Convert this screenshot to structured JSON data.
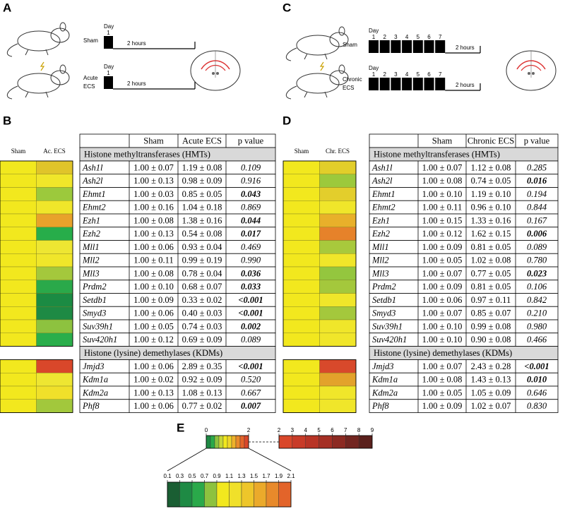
{
  "A": {
    "label": "A",
    "day_label": "Day",
    "duration": "2 hours",
    "conditions": [
      {
        "name": [
          "Sham"
        ],
        "days": [
          "1"
        ]
      },
      {
        "name": [
          "Acute",
          "ECS"
        ],
        "days": [
          "1"
        ]
      }
    ]
  },
  "C": {
    "label": "C",
    "day_label": "Day",
    "duration": "2 hours",
    "conditions": [
      {
        "name": [
          "Sham"
        ],
        "days": [
          "1",
          "2",
          "3",
          "4",
          "5",
          "6",
          "7"
        ]
      },
      {
        "name": [
          "Chronic",
          "ECS"
        ],
        "days": [
          "1",
          "2",
          "3",
          "4",
          "5",
          "6",
          "7"
        ]
      }
    ]
  },
  "B": {
    "label": "B",
    "heatmap_headers": [
      "Sham",
      "Ac. ECS"
    ],
    "columns": [
      "Sham",
      "Acute ECS",
      "p value"
    ],
    "groups": [
      {
        "title": "Histone methyltransferases (HMTs)",
        "rows": [
          {
            "gene": "Ash1l",
            "sham": "1.00 ± 0.07",
            "ecs": "1.19 ± 0.08",
            "p": "0.109",
            "significant": false,
            "heat": [
              "#f2e81e",
              "#e0c42a"
            ]
          },
          {
            "gene": "Ash2l",
            "sham": "1.00 ± 0.13",
            "ecs": "0.98 ± 0.09",
            "p": "0.916",
            "significant": false,
            "heat": [
              "#f2e81e",
              "#f0e62a"
            ]
          },
          {
            "gene": "Ehmt1",
            "sham": "1.00 ± 0.03",
            "ecs": "0.85 ± 0.05",
            "p": "0.043",
            "significant": true,
            "heat": [
              "#f2e81e",
              "#9cc93c"
            ]
          },
          {
            "gene": "Ehmt2",
            "sham": "1.00 ± 0.16",
            "ecs": "1.04 ± 0.18",
            "p": "0.869",
            "significant": false,
            "heat": [
              "#f2e81e",
              "#f0e62a"
            ]
          },
          {
            "gene": "Ezh1",
            "sham": "1.00 ± 0.08",
            "ecs": "1.38 ± 0.16",
            "p": "0.044",
            "significant": true,
            "heat": [
              "#f2e81e",
              "#e8a22b"
            ]
          },
          {
            "gene": "Ezh2",
            "sham": "1.00 ± 0.13",
            "ecs": "0.54 ± 0.08",
            "p": "0.017",
            "significant": true,
            "heat": [
              "#f2e81e",
              "#27ad4a"
            ]
          },
          {
            "gene": "Mll1",
            "sham": "1.00 ± 0.06",
            "ecs": "0.93 ± 0.04",
            "p": "0.469",
            "significant": false,
            "heat": [
              "#f2e81e",
              "#eee632"
            ]
          },
          {
            "gene": "Mll2",
            "sham": "1.00 ± 0.11",
            "ecs": "0.99 ± 0.19",
            "p": "0.990",
            "significant": false,
            "heat": [
              "#f2e81e",
              "#f0e62a"
            ]
          },
          {
            "gene": "Mll3",
            "sham": "1.00 ± 0.08",
            "ecs": "0.78 ± 0.04",
            "p": "0.036",
            "significant": true,
            "heat": [
              "#f2e81e",
              "#a4c83c"
            ]
          },
          {
            "gene": "Prdm2",
            "sham": "1.00 ± 0.10",
            "ecs": "0.68 ± 0.07",
            "p": "0.033",
            "significant": true,
            "heat": [
              "#f2e81e",
              "#2aa94a"
            ]
          },
          {
            "gene": "Setdb1",
            "sham": "1.00 ± 0.09",
            "ecs": "0.33 ± 0.02",
            "p": "<0.001",
            "significant": true,
            "heat": [
              "#f2e81e",
              "#1b8b43"
            ]
          },
          {
            "gene": "Smyd3",
            "sham": "1.00 ± 0.06",
            "ecs": "0.40 ± 0.03",
            "p": "<0.001",
            "significant": true,
            "heat": [
              "#f2e81e",
              "#1e8a44"
            ]
          },
          {
            "gene": "Suv39h1",
            "sham": "1.00 ± 0.05",
            "ecs": "0.74 ± 0.03",
            "p": "0.002",
            "significant": true,
            "heat": [
              "#f2e81e",
              "#8dc23f"
            ]
          },
          {
            "gene": "Suv420h1",
            "sham": "1.00 ± 0.12",
            "ecs": "0.69 ± 0.09",
            "p": "0.089",
            "significant": false,
            "heat": [
              "#f2e81e",
              "#2aae4b"
            ]
          }
        ]
      },
      {
        "title": "Histone (lysine) demethylases (KDMs)",
        "rows": [
          {
            "gene": "Jmjd3",
            "sham": "1.00 ± 0.06",
            "ecs": "2.89 ± 0.35",
            "p": "<0.001",
            "significant": true,
            "heat": [
              "#f2e81e",
              "#d9472a"
            ]
          },
          {
            "gene": "Kdm1a",
            "sham": "1.00 ± 0.02",
            "ecs": "0.92 ± 0.09",
            "p": "0.520",
            "significant": false,
            "heat": [
              "#f2e81e",
              "#eee632"
            ]
          },
          {
            "gene": "Kdm2a",
            "sham": "1.00 ± 0.13",
            "ecs": "1.08 ± 0.13",
            "p": "0.667",
            "significant": false,
            "heat": [
              "#f2e81e",
              "#f0e02a"
            ]
          },
          {
            "gene": "Phf8",
            "sham": "1.00 ± 0.06",
            "ecs": "0.77 ± 0.02",
            "p": "0.007",
            "significant": true,
            "heat": [
              "#f2e81e",
              "#a2c83c"
            ]
          }
        ]
      }
    ]
  },
  "D": {
    "label": "D",
    "heatmap_headers": [
      "Sham",
      "Chr. ECS"
    ],
    "columns": [
      "Sham",
      "Chronic ECS",
      "p value"
    ],
    "groups": [
      {
        "title": "Histone methyltransferases (HMTs)",
        "rows": [
          {
            "gene": "Ash1l",
            "sham": "1.00 ± 0.07",
            "ecs": "1.12 ± 0.08",
            "p": "0.285",
            "significant": false,
            "heat": [
              "#f2e81e",
              "#e2ce2a"
            ]
          },
          {
            "gene": "Ash2l",
            "sham": "1.00 ± 0.08",
            "ecs": "0.74 ± 0.05",
            "p": "0.016",
            "significant": true,
            "heat": [
              "#f2e81e",
              "#9cc93c"
            ]
          },
          {
            "gene": "Ehmt1",
            "sham": "1.00 ± 0.10",
            "ecs": "1.19 ± 0.10",
            "p": "0.194",
            "significant": false,
            "heat": [
              "#f2e81e",
              "#e3ce2c"
            ]
          },
          {
            "gene": "Ehmt2",
            "sham": "1.00 ± 0.11",
            "ecs": "0.96 ± 0.10",
            "p": "0.844",
            "significant": false,
            "heat": [
              "#f2e81e",
              "#f0e62a"
            ]
          },
          {
            "gene": "Ezh1",
            "sham": "1.00 ± 0.15",
            "ecs": "1.33 ± 0.16",
            "p": "0.167",
            "significant": false,
            "heat": [
              "#f2e81e",
              "#e8b02a"
            ]
          },
          {
            "gene": "Ezh2",
            "sham": "1.00 ± 0.12",
            "ecs": "1.62 ± 0.15",
            "p": "0.006",
            "significant": true,
            "heat": [
              "#f2e81e",
              "#e6822a"
            ]
          },
          {
            "gene": "Mll1",
            "sham": "1.00 ± 0.09",
            "ecs": "0.81 ± 0.05",
            "p": "0.089",
            "significant": false,
            "heat": [
              "#f2e81e",
              "#a8c93c"
            ]
          },
          {
            "gene": "Mll2",
            "sham": "1.00 ± 0.05",
            "ecs": "1.02 ± 0.08",
            "p": "0.780",
            "significant": false,
            "heat": [
              "#f2e81e",
              "#f0e62a"
            ]
          },
          {
            "gene": "Mll3",
            "sham": "1.00 ± 0.07",
            "ecs": "0.77 ± 0.05",
            "p": "0.023",
            "significant": true,
            "heat": [
              "#f2e81e",
              "#94c63e"
            ]
          },
          {
            "gene": "Prdm2",
            "sham": "1.00 ± 0.09",
            "ecs": "0.81 ± 0.05",
            "p": "0.106",
            "significant": false,
            "heat": [
              "#f2e81e",
              "#a4c83c"
            ]
          },
          {
            "gene": "Setdb1",
            "sham": "1.00 ± 0.06",
            "ecs": "0.97 ± 0.11",
            "p": "0.842",
            "significant": false,
            "heat": [
              "#f2e81e",
              "#f0e62a"
            ]
          },
          {
            "gene": "Smyd3",
            "sham": "1.00 ± 0.07",
            "ecs": "0.85 ± 0.07",
            "p": "0.210",
            "significant": false,
            "heat": [
              "#f2e81e",
              "#a4c83c"
            ]
          },
          {
            "gene": "Suv39h1",
            "sham": "1.00 ± 0.10",
            "ecs": "0.99 ± 0.08",
            "p": "0.980",
            "significant": false,
            "heat": [
              "#f2e81e",
              "#f0e62a"
            ]
          },
          {
            "gene": "Suv420h1",
            "sham": "1.00 ± 0.10",
            "ecs": "0.90 ± 0.08",
            "p": "0.466",
            "significant": false,
            "heat": [
              "#f2e81e",
              "#f0e62a"
            ]
          }
        ]
      },
      {
        "title": "Histone (lysine) demethylases (KDMs)",
        "rows": [
          {
            "gene": "Jmjd3",
            "sham": "1.00 ± 0.07",
            "ecs": "2.43 ± 0.28",
            "p": "<0.001",
            "significant": true,
            "heat": [
              "#f2e81e",
              "#d8492b"
            ]
          },
          {
            "gene": "Kdm1a",
            "sham": "1.00 ± 0.08",
            "ecs": "1.43 ± 0.13",
            "p": "0.010",
            "significant": true,
            "heat": [
              "#f2e81e",
              "#e3a22b"
            ]
          },
          {
            "gene": "Kdm2a",
            "sham": "1.00 ± 0.05",
            "ecs": "1.05 ± 0.09",
            "p": "0.646",
            "significant": false,
            "heat": [
              "#f2e81e",
              "#f0e62a"
            ]
          },
          {
            "gene": "Phf8",
            "sham": "1.00 ± 0.09",
            "ecs": "1.02 ± 0.07",
            "p": "0.830",
            "significant": false,
            "heat": [
              "#f2e81e",
              "#f0e62a"
            ]
          }
        ]
      }
    ]
  },
  "E": {
    "label": "E",
    "overview": {
      "ticks": [
        0,
        2
      ],
      "colors": [
        "#1e8a44",
        "#2aa94a",
        "#8dc23f",
        "#c8d636",
        "#f2e81e",
        "#f0d62a",
        "#eeb22b",
        "#e98a2b",
        "#e3642a",
        "#d9472a"
      ]
    },
    "high": {
      "ticks": [
        2,
        3,
        4,
        5,
        6,
        7,
        8,
        9
      ],
      "colors": [
        "#d9472a",
        "#c83b28",
        "#b83426",
        "#a52f24",
        "#8c2a22",
        "#722520",
        "#5a201c"
      ]
    },
    "detail": {
      "ticks": [
        0.1,
        0.3,
        0.5,
        0.7,
        0.9,
        1.1,
        1.3,
        1.5,
        1.7,
        1.9,
        2.1
      ],
      "colors": [
        "#1a5e33",
        "#1e8a44",
        "#2aa94a",
        "#8dc23f",
        "#f2e81e",
        "#f0e02a",
        "#eec62a",
        "#ebaa2b",
        "#e88a2b",
        "#e3642a"
      ]
    }
  }
}
